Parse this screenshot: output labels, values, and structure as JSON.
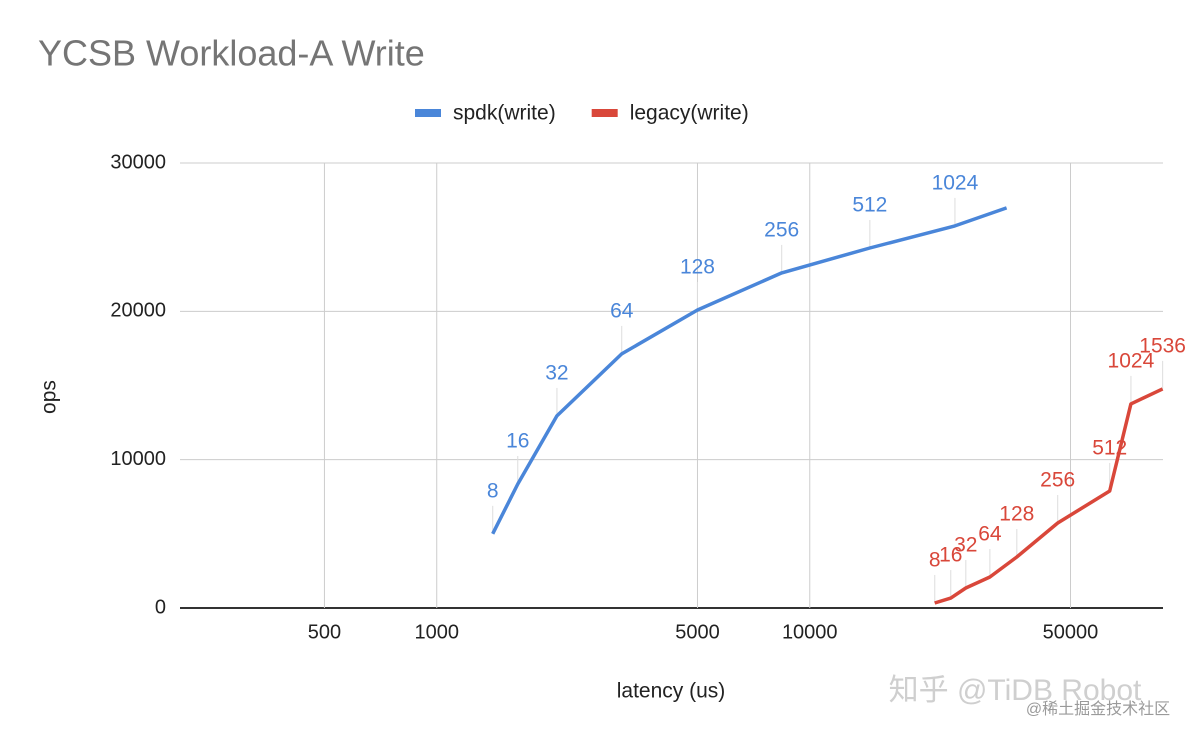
{
  "chart_data": {
    "type": "line",
    "title": "YCSB Workload-A Write",
    "x_label": "latency (us)",
    "y_label": "ops",
    "log_x": true,
    "grid": true,
    "legend": "top",
    "xlim": [
      205,
      88500
    ],
    "xticks": [
      500,
      1000,
      5000,
      10000,
      50000
    ],
    "ylim": [
      0,
      30000
    ],
    "yticks": [
      0,
      10000,
      20000,
      30000
    ],
    "series": [
      {
        "name": "spdk(write)",
        "color": "#4a86d9",
        "x": [
          1413,
          1649,
          2100,
          3133,
          5000,
          8410,
          14490,
          24500,
          33700
        ],
        "values": [
          5000,
          8360,
          12950,
          17130,
          20090,
          22590,
          24270,
          25760,
          26970
        ],
        "point_labels": [
          "8",
          "16",
          "32",
          "64",
          "128",
          "256",
          "512",
          "1024",
          null
        ]
      },
      {
        "name": "legacy(write)",
        "color": "#d9473a",
        "x": [
          21630,
          23880,
          26200,
          30400,
          35900,
          46200,
          63700,
          72600,
          88300
        ],
        "values": [
          340,
          670,
          1350,
          2090,
          3440,
          5730,
          7890,
          13760,
          14770
        ],
        "point_labels": [
          "8",
          "16",
          "32",
          "64",
          "128",
          "256",
          "512",
          "1024",
          "1536"
        ]
      }
    ],
    "watermark": [
      "知乎 @TiDB Robot",
      "@稀土掘金技术社区"
    ]
  }
}
